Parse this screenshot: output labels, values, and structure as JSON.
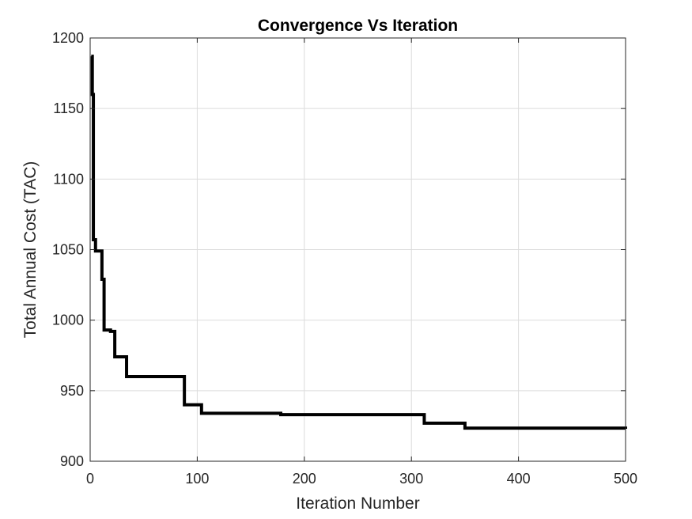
{
  "chart_data": {
    "type": "line",
    "title": "Convergence Vs Iteration",
    "xlabel": "Iteration Number",
    "ylabel": "Total Annual Cost (TAC)",
    "xlim": [
      0,
      500
    ],
    "ylim": [
      900,
      1200
    ],
    "xticks": [
      0,
      100,
      200,
      300,
      400,
      500
    ],
    "yticks": [
      900,
      950,
      1000,
      1050,
      1100,
      1150,
      1200
    ],
    "grid": true,
    "line_color": "#000000",
    "series": [
      {
        "step": true,
        "x": [
          1,
          2,
          3,
          5,
          11,
          13,
          19,
          23,
          34,
          88,
          104,
          178,
          312,
          350,
          475,
          500
        ],
        "y": [
          1187,
          1160,
          1057,
          1049,
          1029,
          993,
          992,
          974,
          960,
          940,
          934,
          933,
          927,
          923.5,
          923.5,
          923
        ]
      }
    ]
  }
}
